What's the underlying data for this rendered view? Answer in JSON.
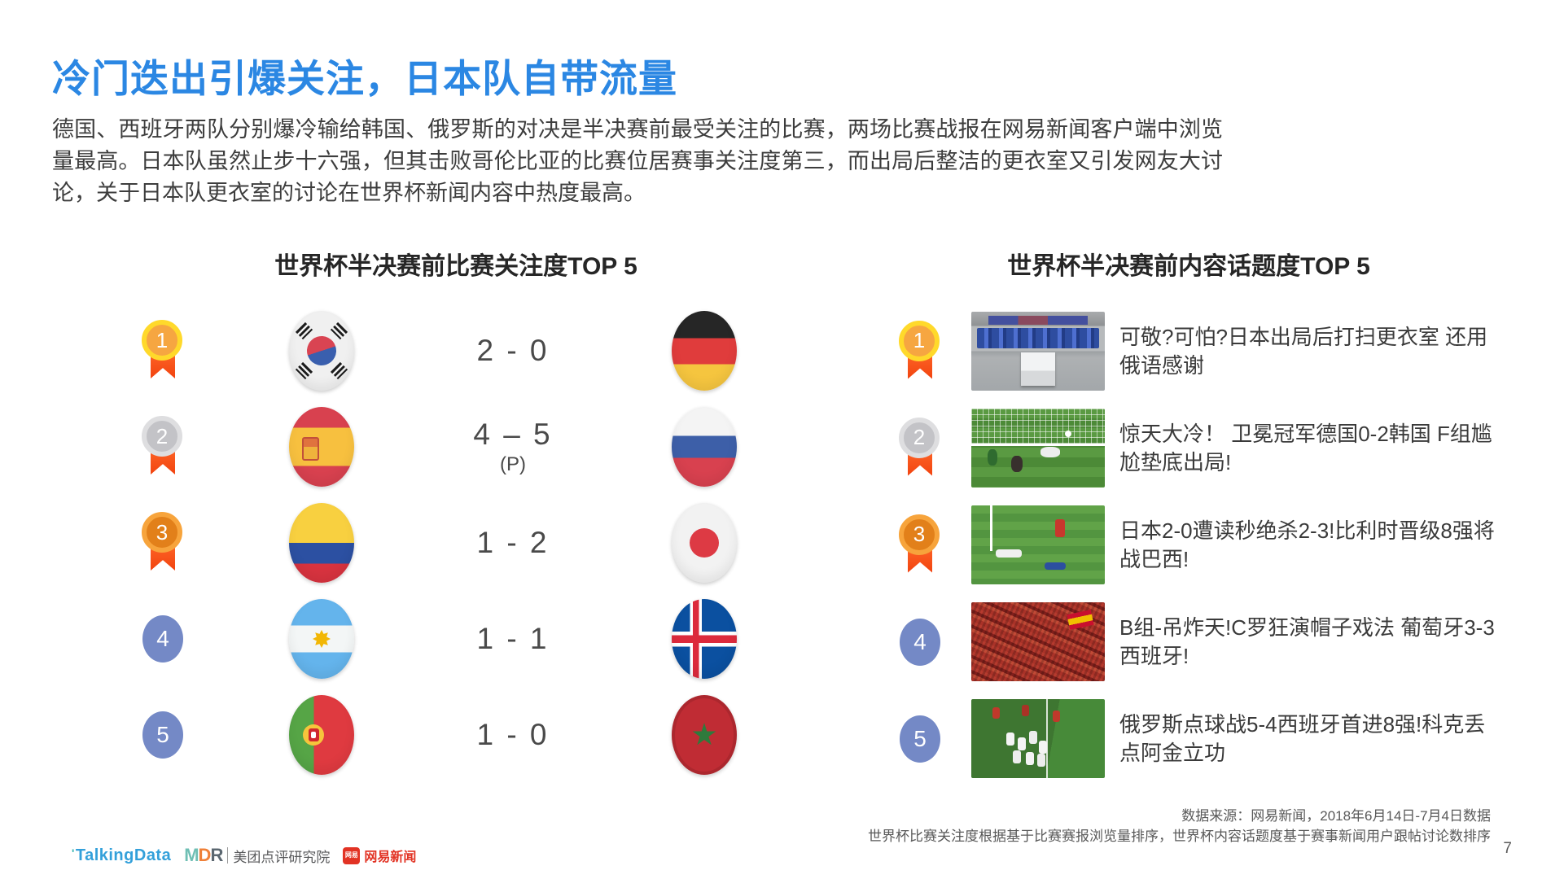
{
  "slide": {
    "title": "冷门迭出引爆关注，日本队自带流量",
    "paragraph": "德国、西班牙两队分别爆冷输给韩国、俄罗斯的对决是半决赛前最受关注的比赛，两场比赛战报在网易新闻客户端中浏览量最高。日本队虽然止步十六强，但其击败哥伦比亚的比赛位居赛事关注度第三，而出局后整洁的更衣室又引发网友大讨论，关于日本队更衣室的讨论在世界杯新闻内容中热度最高。",
    "page_number": "7"
  },
  "left_panel": {
    "title": "世界杯半决赛前比赛关注度TOP 5",
    "rows": [
      {
        "rank": "1",
        "flag_a": "south-korea-flag",
        "score": "2 - 0",
        "score_note": "",
        "flag_b": "germany-flag"
      },
      {
        "rank": "2",
        "flag_a": "spain-flag",
        "score": "4 – 5",
        "score_note": "(P)",
        "flag_b": "russia-flag"
      },
      {
        "rank": "3",
        "flag_a": "colombia-flag",
        "score": "1 - 2",
        "score_note": "",
        "flag_b": "japan-flag"
      },
      {
        "rank": "4",
        "flag_a": "argentina-flag",
        "score": "1 - 1",
        "score_note": "",
        "flag_b": "iceland-flag"
      },
      {
        "rank": "5",
        "flag_a": "portugal-flag",
        "score": "1 - 0",
        "score_note": "",
        "flag_b": "morocco-flag"
      }
    ]
  },
  "right_panel": {
    "title": "世界杯半决赛前内容话题度TOP 5",
    "rows": [
      {
        "rank": "1",
        "image": "japan-locker-room-photo",
        "headline": "可敬?可怕?日本出局后打扫更衣室 还用俄语感谢"
      },
      {
        "rank": "2",
        "image": "germany-korea-goal-photo",
        "headline": "惊天大冷！ 卫冕冠军德国0-2韩国 F组尴尬垫底出局!"
      },
      {
        "rank": "3",
        "image": "japan-belgium-pitch-photo",
        "headline": "日本2-0遭读秒绝杀2-3!比利时晋级8强将战巴西!"
      },
      {
        "rank": "4",
        "image": "portugal-spain-crowd-photo",
        "headline": "B组-吊炸天!C罗狂演帽子戏法 葡萄牙3-3西班牙!"
      },
      {
        "rank": "5",
        "image": "russia-spain-celebration-photo",
        "headline": "俄罗斯点球战5-4西班牙首进8强!科克丢点阿金立功"
      }
    ]
  },
  "footer": {
    "source_line1": "数据来源：网易新闻，2018年6月14日-7月4日数据",
    "source_line2": "世界杯比赛关注度根据基于比赛赛报浏览量排序，世界杯内容话题度基于赛事新闻用户跟帖讨论数排序",
    "logos": {
      "talkingdata": "TalkingData",
      "mdr_m": "M",
      "mdr_d": "D",
      "mdr_r": "R",
      "mdr_label": "美团点评研究院",
      "netease_badge": "网易",
      "netease_label": "网易新闻"
    }
  },
  "colors": {
    "title_blue": "#2B87E3",
    "rank_badge_blue": "#7489C6",
    "ribbon_red": "#F2430F",
    "gold": "#FFD92B",
    "silver": "#DEDEE0",
    "bronze": "#F7A43C",
    "netease_red": "#E23324",
    "talkingdata_blue": "#33A0DA"
  }
}
